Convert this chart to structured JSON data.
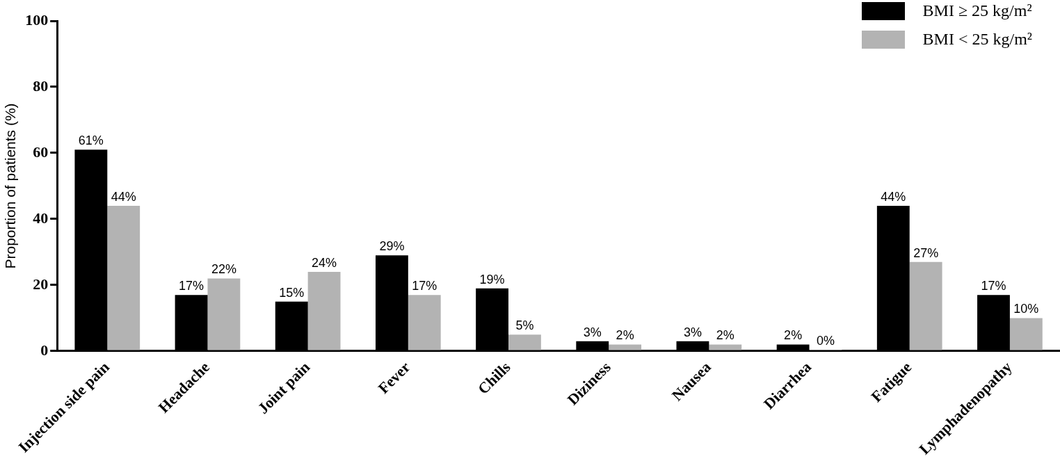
{
  "chart_data": {
    "type": "bar",
    "ylabel": "Proportion of patients (%)",
    "categories": [
      "Injection side pain",
      "Headache",
      "Joint pain",
      "Fever",
      "Chills",
      "Diziness",
      "Nausea",
      "Diarrhea",
      "Fatigue",
      "Lymphadenopathy"
    ],
    "series": [
      {
        "name": "BMI ≥ 25 kg/m²",
        "color": "#000000",
        "values": [
          61,
          17,
          15,
          29,
          19,
          3,
          3,
          2,
          44,
          17
        ],
        "value_labels": [
          "61%",
          "17%",
          "15%",
          "29%",
          "19%",
          "3%",
          "3%",
          "2%",
          "44%",
          "17%"
        ]
      },
      {
        "name": "BMI < 25 kg/m²",
        "color": "#b3b3b3",
        "values": [
          44,
          22,
          24,
          17,
          5,
          2,
          2,
          0,
          27,
          10
        ],
        "value_labels": [
          "44%",
          "22%",
          "24%",
          "17%",
          "5%",
          "2%",
          "2%",
          "0%",
          "27%",
          "10%"
        ]
      }
    ],
    "ylim": [
      0,
      100
    ],
    "yticks": [
      0,
      20,
      40,
      60,
      80,
      100
    ],
    "grid": false,
    "legend": "top right"
  }
}
